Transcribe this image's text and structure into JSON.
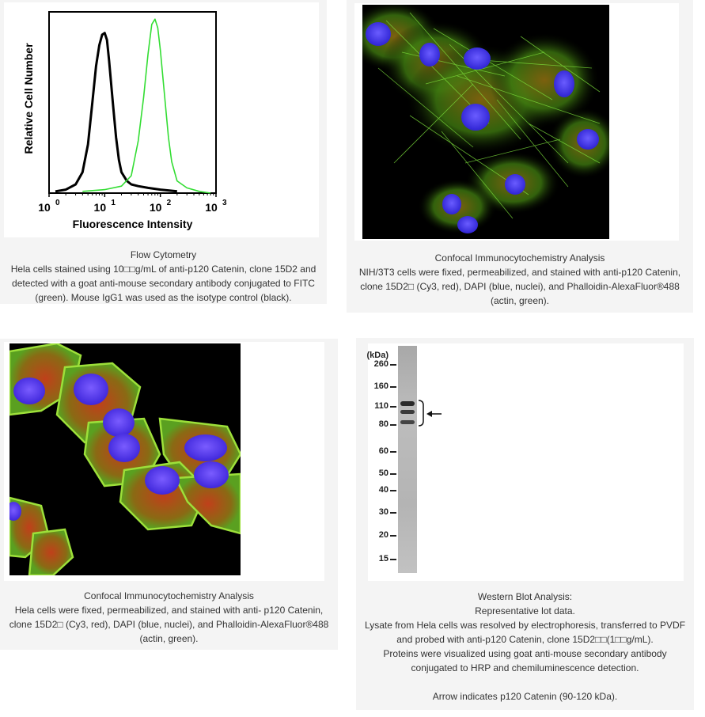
{
  "panels": {
    "flow": {
      "caption": [
        "Flow Cytometry",
        "Hela cells stained using 10□□g/mL of anti-p120 Catenin, clone 15D2 and",
        "detected with a goat anti-mouse secondary antibody conjugated to FITC",
        "(green). Mouse IgG1 was used as the isotype control (black)."
      ]
    },
    "confocal_nih": {
      "caption": [
        "Confocal Immunocytochemistry Analysis",
        "NIH/3T3 cells were fixed, permeabilized, and stained with anti-p120 Catenin,",
        "clone 15D2□ (Cy3, red), DAPI (blue, nuclei), and Phalloidin-AlexaFluor®488",
        "(actin, green)."
      ]
    },
    "confocal_hela": {
      "caption": [
        "Confocal Immunocytochemistry Analysis",
        "Hela cells were fixed, permeabilized, and stained with anti- p120 Catenin,",
        "clone 15D2□ (Cy3, red), DAPI (blue, nuclei), and Phalloidin-AlexaFluor®488",
        "(actin, green)."
      ]
    },
    "western": {
      "unit_label": "(kDa)",
      "markers": [
        "260",
        "160",
        "110",
        "80",
        "60",
        "50",
        "40",
        "30",
        "20",
        "15"
      ],
      "arrow_icon": "left-arrow-icon",
      "caption": [
        "Western Blot Analysis:",
        "Representative lot data.",
        "Lysate from Hela cells was resolved by electrophoresis, transferred to PVDF",
        "and probed with anti-p120 Catenin, clone 15D2□□(1□□g/mL).",
        "Proteins were visualized using goat anti-mouse secondary antibody",
        "conjugated to HRP and chemiluminescence detection.",
        "",
        "Arrow indicates p120 Catenin (90-120 kDa)."
      ]
    }
  },
  "chart_data": {
    "type": "line",
    "xlabel": "Fluorescence Intensity",
    "ylabel": "Relative Cell Number",
    "xscale": "log",
    "xlim": [
      1,
      1000
    ],
    "x_ticks": [
      "10",
      "10",
      "10",
      "10"
    ],
    "x_tick_exponents": [
      "0",
      "1",
      "2",
      "3"
    ],
    "grid": false,
    "series": [
      {
        "color": "#000000",
        "x": [
          1.3,
          2,
          3,
          4,
          5,
          6,
          7,
          8,
          9,
          10,
          11,
          12,
          14,
          16,
          18,
          20,
          25,
          30,
          40,
          60,
          100,
          200
        ],
        "values": [
          0.01,
          0.02,
          0.05,
          0.12,
          0.28,
          0.52,
          0.73,
          0.85,
          0.91,
          0.92,
          0.88,
          0.76,
          0.52,
          0.32,
          0.19,
          0.12,
          0.07,
          0.05,
          0.04,
          0.03,
          0.02,
          0.01
        ]
      },
      {
        "color": "#33dd33",
        "x": [
          4,
          10,
          20,
          30,
          40,
          50,
          60,
          70,
          80,
          90,
          100,
          120,
          140,
          160,
          200,
          300,
          500,
          800
        ],
        "values": [
          0.01,
          0.02,
          0.04,
          0.1,
          0.3,
          0.55,
          0.8,
          0.97,
          1.0,
          0.95,
          0.82,
          0.55,
          0.32,
          0.18,
          0.07,
          0.03,
          0.01,
          0.0
        ]
      }
    ]
  }
}
